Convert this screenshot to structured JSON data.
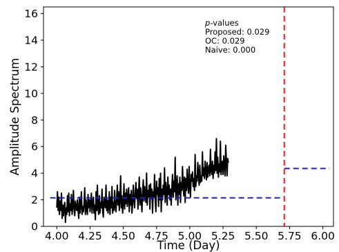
{
  "chart_data": {
    "type": "line",
    "xlabel": "Time (Day)",
    "ylabel": "Amplitude Spectrum",
    "xlim": [
      3.9,
      6.08
    ],
    "ylim": [
      0,
      16.5
    ],
    "xticks": [
      "4.00",
      "4.25",
      "4.50",
      "4.75",
      "5.00",
      "5.25",
      "5.50",
      "5.75",
      "6.00"
    ],
    "yticks": [
      "0",
      "2",
      "4",
      "6",
      "8",
      "10",
      "12",
      "14",
      "16"
    ],
    "grid": false,
    "annotation": {
      "title_italic": "p",
      "title_rest": "-values",
      "lines": [
        "Proposed: 0.029",
        "OC: 0.029",
        "Naive: 0.000"
      ]
    },
    "colors": {
      "signal": "#000000",
      "segment_mean": "#1f1fd6",
      "changepoint": "#ee1c1c"
    },
    "changepoint_x": 5.71,
    "segment_means": [
      {
        "x_start": 3.95,
        "x_end": 5.71,
        "y": 2.15
      },
      {
        "x_start": 5.71,
        "x_end": 6.05,
        "y": 4.35
      }
    ],
    "series": [
      {
        "x_start": 4.0,
        "x_step": 0.005,
        "values": [
          1.4,
          2.6,
          1.2,
          2.2,
          0.9,
          1.9,
          1.2,
          2.5,
          0.6,
          1.6,
          0.8,
          1.5,
          1.8,
          0.3,
          1.4,
          0.9,
          2.3,
          1.1,
          2.5,
          0.8,
          1.7,
          1.2,
          2.4,
          0.9,
          1.5,
          2.7,
          1.3,
          0.8,
          1.9,
          1.4,
          1.2,
          2.0,
          1.2,
          0.6,
          2.2,
          1.0,
          1.6,
          2.6,
          0.9,
          1.5,
          1.1,
          1.7,
          2.9,
          0.9,
          2.0,
          1.3,
          0.9,
          2.4,
          1.4,
          2.0,
          1.1,
          1.8,
          2.5,
          1.0,
          1.7,
          2.2,
          1.0,
          1.6,
          0.5,
          2.6,
          1.2,
          3.1,
          1.4,
          0.9,
          2.3,
          1.0,
          1.8,
          1.4,
          2.8,
          1.1,
          0.7,
          2.2,
          1.6,
          1.4,
          3.1,
          1.2,
          2.0,
          1.0,
          1.6,
          2.6,
          0.9,
          2.2,
          1.4,
          3.0,
          1.0,
          1.8,
          1.2,
          2.7,
          1.5,
          1.1,
          2.1,
          3.1,
          1.6,
          2.6,
          1.2,
          2.0,
          3.8,
          1.4,
          2.3,
          1.0,
          1.8,
          3.2,
          1.3,
          2.5,
          1.7,
          2.8,
          1.5,
          2.2,
          2.9,
          1.1,
          2.4,
          1.6,
          2.7,
          1.0,
          1.7,
          3.1,
          2.0,
          1.4,
          2.6,
          3.3,
          2.1,
          2.8,
          1.3,
          2.5,
          3.7,
          1.6,
          2.9,
          2.1,
          1.1,
          2.6,
          3.5,
          1.9,
          3.0,
          2.3,
          1.8,
          4.0,
          1.6,
          2.7,
          2.2,
          3.1,
          1.3,
          3.2,
          2.1,
          2.8,
          1.0,
          2.6,
          2.2,
          3.9,
          2.0,
          1.1,
          3.4,
          2.4,
          2.9,
          1.5,
          3.6,
          2.0,
          4.0,
          1.1,
          2.8,
          2.0,
          3.1,
          2.4,
          4.4,
          1.8,
          3.3,
          2.6,
          1.6,
          3.7,
          2.4,
          3.1,
          2.0,
          2.8,
          1.6,
          2.9,
          3.9,
          2.2,
          3.4,
          2.6,
          5.2,
          2.0,
          3.0,
          3.8,
          1.6,
          3.2,
          2.4,
          3.7,
          1.8,
          3.3,
          2.7,
          4.5,
          3.1,
          2.3,
          3.7,
          1.8,
          3.6,
          2.7,
          4.3,
          3.2,
          2.5,
          4.5,
          3.0,
          2.2,
          3.9,
          3.4,
          4.1,
          3.0,
          3.6,
          2.7,
          5.4,
          3.0,
          3.8,
          3.4,
          4.8,
          3.9,
          3.1,
          4.6,
          3.3,
          3.8,
          3.4,
          5.6,
          3.8,
          4.4,
          3.6,
          4.9,
          4.2,
          3.5,
          4.8,
          3.7,
          4.3,
          4.6,
          3.8,
          5.8,
          4.2,
          3.9,
          4.9,
          3.6,
          4.6,
          4.0,
          5.6,
          4.2,
          6.6,
          4.0,
          5.2,
          3.7,
          4.7,
          4.1,
          6.4,
          3.9,
          4.6,
          4.9,
          3.9,
          5.3,
          4.6,
          3.8,
          6.1,
          4.9,
          3.8,
          5.1,
          4.8
        ]
      }
    ]
  }
}
